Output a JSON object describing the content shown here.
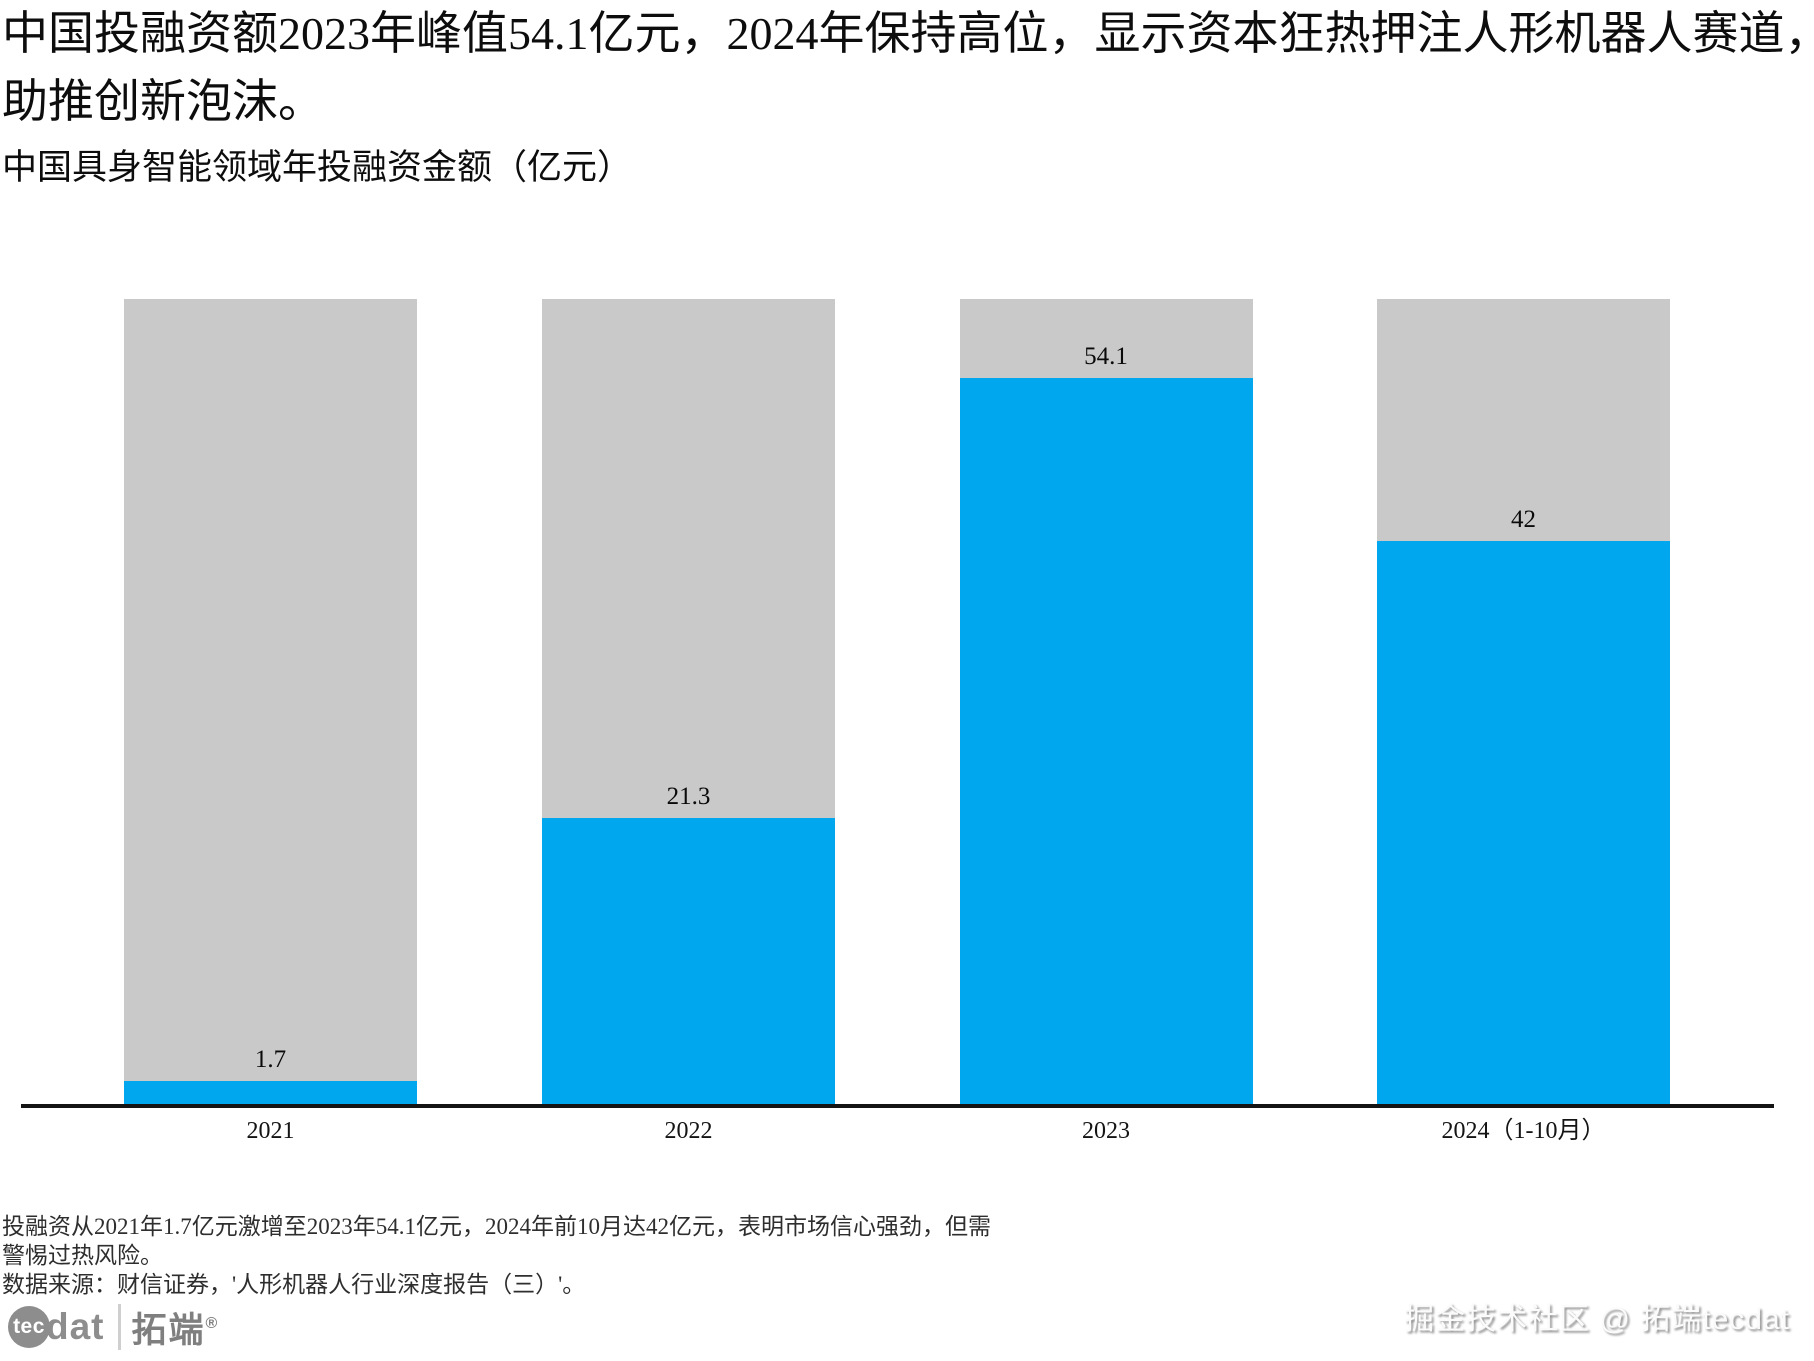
{
  "page": {
    "title_line1": "中国投融资额2023年峰值54.1亿元，2024年保持高位，显示资本狂热押注人形机器人赛道，",
    "title_line2": "助推创新泡沫。",
    "subtitle": "中国具身智能领域年投融资金额（亿元）"
  },
  "chart_data": {
    "type": "bar",
    "title": "中国具身智能领域年投融资金额（亿元）",
    "categories": [
      "2021",
      "2022",
      "2023",
      "2024（1-10月）"
    ],
    "values": [
      1.7,
      21.3,
      54.1,
      42
    ],
    "value_labels": [
      "1.7",
      "21.3",
      "54.1",
      "42"
    ],
    "ylabel": "",
    "xlabel": "",
    "ylim": [
      0,
      60
    ],
    "grid": false,
    "legend": false,
    "bar_color": "#00a7ef",
    "background_bar_color": "#c9c9c9",
    "axis_color": "#141414"
  },
  "footnote": {
    "line1": "投融资从2021年1.7亿元激增至2023年54.1亿元，2024年前10月达42亿元，表明市场信心强劲，但需",
    "line2": "警惕过热风险。",
    "line3": "数据来源：财信证券，'人形机器人行业深度报告（三）'。"
  },
  "branding": {
    "logo_circle_text": "tec",
    "logo_text": "dat",
    "logo_cn": "拓端",
    "logo_reg": "®",
    "watermark": "掘金技术社区 @ 拓端tecdat"
  }
}
